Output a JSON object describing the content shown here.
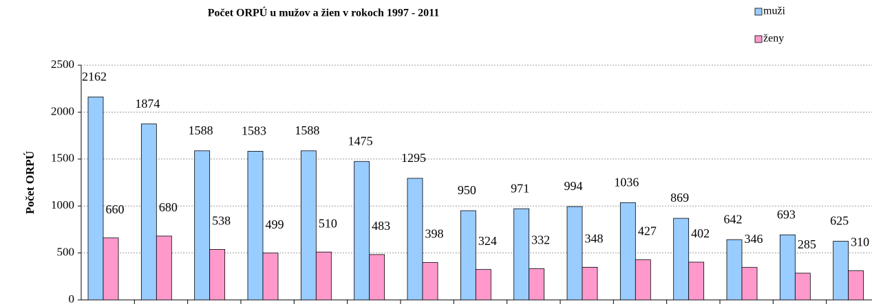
{
  "chart_data": {
    "type": "bar",
    "title": "Počet ORPÚ u mužov a žien v rokoch 1997 - 2011",
    "y_label": "Počet  ORPÚ",
    "categories": [
      null,
      null,
      null,
      null,
      null,
      null,
      null,
      null,
      null,
      null,
      null,
      null,
      null,
      null,
      null
    ],
    "series": [
      {
        "name": "muži",
        "color": "#99ccff",
        "values": [
          2162,
          1874,
          1588,
          1583,
          1588,
          1475,
          1295,
          950,
          971,
          994,
          1036,
          869,
          642,
          693,
          625
        ]
      },
      {
        "name": "ženy",
        "color": "#ff99cc",
        "values": [
          660,
          680,
          538,
          499,
          510,
          483,
          398,
          324,
          332,
          348,
          427,
          402,
          346,
          285,
          310
        ]
      }
    ],
    "ylim": [
      0,
      2500
    ],
    "yticks": [
      0,
      500,
      1000,
      1500,
      2000,
      2500
    ],
    "grid": true,
    "legend": "top-right"
  }
}
